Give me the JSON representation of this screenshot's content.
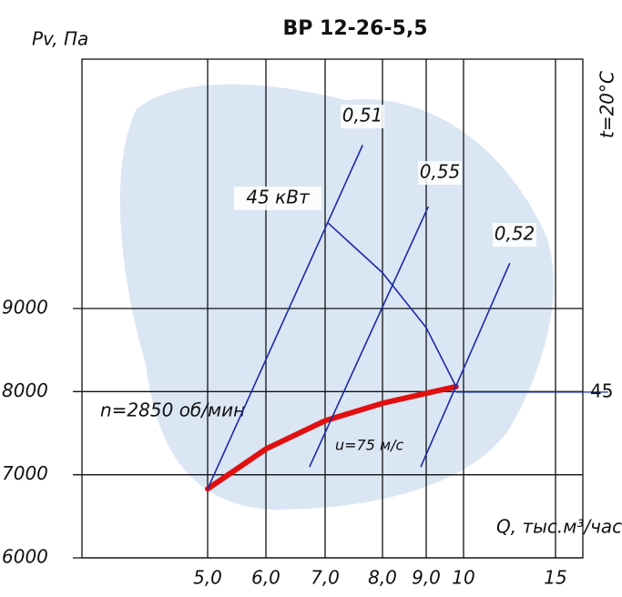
{
  "chart_data": {
    "type": "line",
    "title": "ВР 12-26-5,5",
    "y_label": "Pv, Па",
    "x_label": "Q, тыс.м³/час",
    "annotations": [
      "t=20°C",
      "u=75 м/с",
      "45"
    ],
    "xticks": [
      {
        "value": 5,
        "label": "5,0"
      },
      {
        "value": 6,
        "label": "6,0"
      },
      {
        "value": 7,
        "label": "7,0"
      },
      {
        "value": 8,
        "label": "8,0"
      },
      {
        "value": 9,
        "label": "9,0"
      },
      10,
      15
    ],
    "ylim": [
      6000,
      12000
    ],
    "yticks": [
      6000,
      7000,
      8000,
      9000
    ],
    "grid": true,
    "series": [
      {
        "name": "n=2850 об/мин",
        "color": "#e01010",
        "x": [
          5,
          6,
          7,
          8,
          9,
          9.8
        ],
        "values": [
          6830,
          7310,
          7650,
          7860,
          7980,
          8060
        ]
      },
      {
        "name": "45 кВт",
        "color": "#1a2aa8",
        "x": [
          7.05,
          8,
          9,
          9.8
        ],
        "values": [
          10030,
          9430,
          8770,
          8060
        ]
      },
      {
        "name": "0,51",
        "color": "#1a2aa8",
        "x": [
          5,
          7.65
        ],
        "values": [
          6830,
          10960
        ]
      },
      {
        "name": "0,55",
        "color": "#1a2aa8",
        "x": [
          6.74,
          9.05
        ],
        "values": [
          7100,
          10220
        ]
      },
      {
        "name": "0,52",
        "color": "#1a2aa8",
        "x": [
          8.88,
          12.5
        ],
        "values": [
          7100,
          9540
        ]
      }
    ]
  }
}
